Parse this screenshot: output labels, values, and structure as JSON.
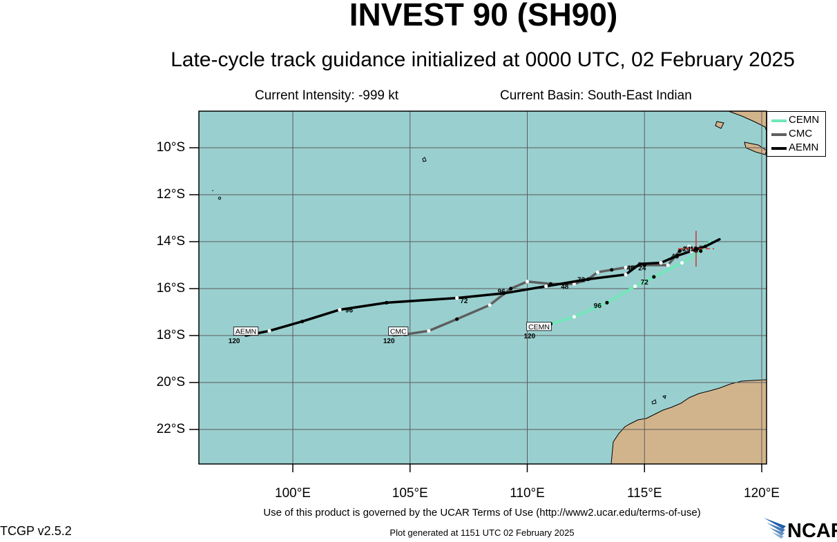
{
  "header": {
    "title": "INVEST 90 (SH90)",
    "subtitle": "Late-cycle track guidance initialized at 0000 UTC, 02 February 2025",
    "intensity": "Current Intensity: -999 kt",
    "basin": "Current Basin: South-East Indian"
  },
  "axes": {
    "lat_labels": [
      "10°S",
      "12°S",
      "14°S",
      "16°S",
      "18°S",
      "20°S",
      "22°S"
    ],
    "lon_labels": [
      "100°E",
      "105°E",
      "110°E",
      "115°E",
      "120°E"
    ]
  },
  "colors": {
    "ocean": "#99cfcf",
    "land": "#d2b48c",
    "grid": "#5a5a5a",
    "CEMN": "#70e8b8",
    "CMC": "#5e5e5e",
    "AEMN": "#000000",
    "storm_marker": "#d02020"
  },
  "legend": [
    "CEMN",
    "CMC",
    "AEMN"
  ],
  "tracks": [
    {
      "name": "CEMN",
      "points": [
        [
          117.8,
          -14.0
        ],
        [
          117.4,
          -14.4
        ],
        [
          116.6,
          -14.9
        ],
        [
          115.4,
          -15.5
        ],
        [
          114.6,
          -15.9
        ],
        [
          113.4,
          -16.6
        ],
        [
          112.0,
          -17.2
        ],
        [
          111.0,
          -17.5
        ],
        [
          110.5,
          -17.6
        ]
      ],
      "hour_labels": [
        [
          "72",
          115.0,
          -15.7
        ],
        [
          "96",
          113.0,
          -16.7
        ],
        [
          "120",
          110.1,
          -18.0
        ]
      ]
    },
    {
      "name": "CMC",
      "points": [
        [
          117.4,
          -14.2
        ],
        [
          117.2,
          -14.4
        ],
        [
          116.9,
          -14.2
        ],
        [
          116.5,
          -14.4
        ],
        [
          116.0,
          -15.0
        ],
        [
          115.0,
          -15.0
        ],
        [
          114.2,
          -15.1
        ],
        [
          113.6,
          -15.2
        ],
        [
          113.0,
          -15.3
        ],
        [
          112.6,
          -15.6
        ],
        [
          112.0,
          -15.8
        ],
        [
          111.0,
          -15.8
        ],
        [
          110.0,
          -15.7
        ],
        [
          109.3,
          -16.0
        ],
        [
          108.4,
          -16.7
        ],
        [
          107.0,
          -17.3
        ],
        [
          105.8,
          -17.8
        ],
        [
          104.8,
          -17.95
        ],
        [
          104.3,
          -18.0
        ]
      ],
      "hour_labels": [
        [
          "48",
          114.4,
          -15.1
        ],
        [
          "24",
          114.9,
          -15.1
        ],
        [
          "72",
          112.3,
          -15.6
        ],
        [
          "48",
          111.6,
          -15.9
        ],
        [
          "96",
          108.9,
          -16.1
        ],
        [
          "72",
          107.3,
          -16.5
        ],
        [
          "120",
          104.1,
          -18.2
        ]
      ]
    },
    {
      "name": "AEMN",
      "points": [
        [
          118.2,
          -13.9
        ],
        [
          117.6,
          -14.2
        ],
        [
          117.0,
          -14.4
        ],
        [
          116.4,
          -14.6
        ],
        [
          115.7,
          -14.9
        ],
        [
          114.8,
          -14.95
        ],
        [
          114.2,
          -15.4
        ],
        [
          112.6,
          -15.6
        ],
        [
          110.8,
          -15.9
        ],
        [
          109.0,
          -16.2
        ],
        [
          107.0,
          -16.4
        ],
        [
          104.0,
          -16.6
        ],
        [
          102.0,
          -16.9
        ],
        [
          100.4,
          -17.4
        ],
        [
          99.0,
          -17.8
        ],
        [
          98.0,
          -18.0
        ]
      ],
      "hour_labels": [
        [
          "48",
          116.3,
          -14.6
        ],
        [
          "24",
          116.8,
          -14.3
        ],
        [
          "12",
          117.1,
          -14.3
        ],
        [
          "96",
          102.4,
          -16.9
        ],
        [
          "120",
          97.5,
          -18.2
        ]
      ]
    }
  ],
  "end_labels": [
    [
      "AEMN",
      98.0,
      -17.9
    ],
    [
      "CMC",
      104.5,
      -17.9
    ],
    [
      "CEMN",
      110.5,
      -17.7
    ]
  ],
  "storm_position": [
    117.2,
    -14.3
  ],
  "footer": {
    "terms": "Use of this product is governed by the UCAR Terms of Use (http://www2.ucar.edu/terms-of-use)",
    "version": "TCGP v2.5.2",
    "generated": "Plot generated at 1151 UTC   02 February 2025",
    "logo_text": "NCAR"
  }
}
